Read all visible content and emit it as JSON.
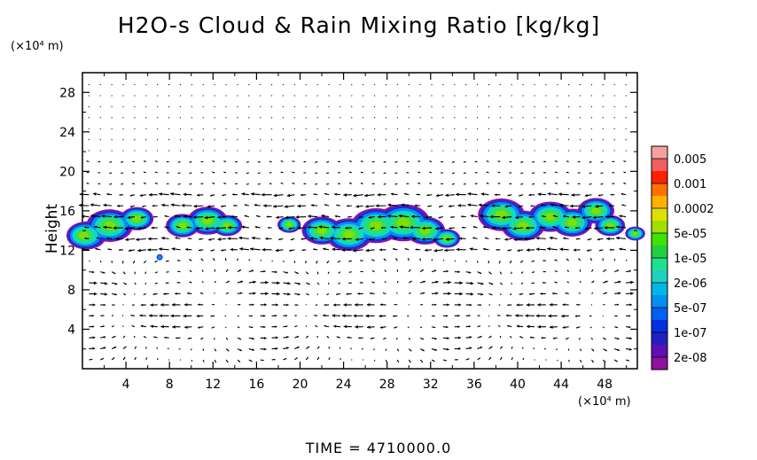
{
  "chart_data": {
    "type": "contour-vector",
    "title": "H2O-s Cloud & Rain Mixing Ratio [kg/kg]",
    "ylabel": "Height",
    "xunit": "(×10⁴ m)",
    "yunit": "(×10⁴ m)",
    "xlim": [
      0,
      51
    ],
    "ylim": [
      0,
      30
    ],
    "xticks": [
      4,
      8,
      12,
      16,
      20,
      24,
      28,
      32,
      36,
      40,
      44,
      48
    ],
    "yticks": [
      4,
      8,
      12,
      16,
      20,
      24,
      28
    ],
    "colorbar": {
      "labels": [
        "0.005",
        "0.001",
        "0.0002",
        "5e-05",
        "1e-05",
        "2e-06",
        "5e-07",
        "1e-07",
        "2e-08"
      ],
      "colors": [
        "#f4a0a0",
        "#f06060",
        "#ff2000",
        "#ff7000",
        "#ffb000",
        "#e0e000",
        "#a0e000",
        "#40e000",
        "#20d040",
        "#20e090",
        "#20d0c0",
        "#00b8e8",
        "#0090f0",
        "#0060f0",
        "#0030e0",
        "#2020c0",
        "#6010b0",
        "#9010a0"
      ]
    },
    "cloud_band_height": [
      12,
      17
    ]
  },
  "footer": {
    "time_label": "TIME  =  4710000.0"
  }
}
